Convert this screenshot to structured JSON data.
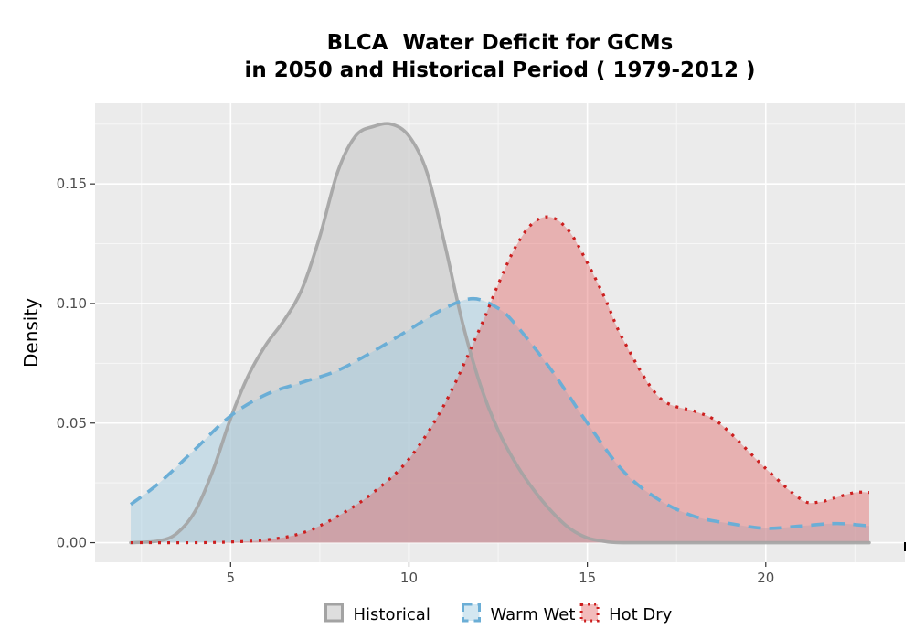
{
  "chart_data": {
    "type": "area",
    "title_lines": [
      "BLCA  Water Deficit for GCMs",
      "in 2050 and Historical Period ( 1979-2012 )"
    ],
    "xlabel": "",
    "ylabel": "Density",
    "xlim": [
      1.2,
      23.9
    ],
    "ylim": [
      -0.0082,
      0.1837
    ],
    "x_ticks": [
      5,
      10,
      15,
      20
    ],
    "x_tick_labels": [
      "5",
      "10",
      "15",
      "20"
    ],
    "y_ticks": [
      0.0,
      0.05,
      0.1,
      0.15
    ],
    "y_tick_labels": [
      "0.00",
      "0.05",
      "0.10",
      "0.15"
    ],
    "grid": true,
    "legend_position": "bottom",
    "series": [
      {
        "name": "Historical",
        "fill": "#c8c8c8",
        "line": "#a3a3a3",
        "line_style": "solid",
        "points": [
          [
            2.2,
            0.0
          ],
          [
            3.0,
            0.0008
          ],
          [
            3.5,
            0.004
          ],
          [
            4.0,
            0.013
          ],
          [
            4.5,
            0.03
          ],
          [
            5.0,
            0.052
          ],
          [
            5.5,
            0.07
          ],
          [
            6.0,
            0.083
          ],
          [
            6.5,
            0.093
          ],
          [
            7.0,
            0.106
          ],
          [
            7.5,
            0.128
          ],
          [
            8.0,
            0.155
          ],
          [
            8.5,
            0.17
          ],
          [
            9.0,
            0.174
          ],
          [
            9.5,
            0.175
          ],
          [
            10.0,
            0.17
          ],
          [
            10.5,
            0.155
          ],
          [
            11.0,
            0.125
          ],
          [
            11.5,
            0.092
          ],
          [
            12.0,
            0.066
          ],
          [
            12.5,
            0.047
          ],
          [
            13.0,
            0.033
          ],
          [
            13.5,
            0.022
          ],
          [
            14.0,
            0.013
          ],
          [
            14.5,
            0.006
          ],
          [
            15.0,
            0.002
          ],
          [
            15.5,
            0.0005
          ],
          [
            16.0,
            0.0
          ],
          [
            18.0,
            0.0
          ],
          [
            20.0,
            0.0
          ],
          [
            22.9,
            0.0
          ]
        ]
      },
      {
        "name": "Warm Wet",
        "fill": "#9ecae1",
        "line": "#6baed6",
        "line_style": "dashed",
        "points": [
          [
            2.2,
            0.016
          ],
          [
            3.0,
            0.025
          ],
          [
            4.0,
            0.039
          ],
          [
            5.0,
            0.053
          ],
          [
            6.0,
            0.062
          ],
          [
            7.0,
            0.067
          ],
          [
            8.0,
            0.072
          ],
          [
            9.0,
            0.08
          ],
          [
            10.0,
            0.089
          ],
          [
            11.0,
            0.098
          ],
          [
            11.8,
            0.102
          ],
          [
            12.5,
            0.098
          ],
          [
            13.0,
            0.091
          ],
          [
            14.0,
            0.072
          ],
          [
            15.0,
            0.05
          ],
          [
            16.0,
            0.03
          ],
          [
            17.0,
            0.018
          ],
          [
            18.0,
            0.011
          ],
          [
            19.0,
            0.008
          ],
          [
            20.0,
            0.006
          ],
          [
            21.0,
            0.007
          ],
          [
            22.0,
            0.008
          ],
          [
            22.9,
            0.007
          ]
        ]
      },
      {
        "name": "Hot Dry",
        "fill": "#e36b6b",
        "line": "#cc1f1f",
        "line_style": "dotted",
        "points": [
          [
            2.2,
            0.0
          ],
          [
            4.0,
            0.0
          ],
          [
            5.0,
            0.0003
          ],
          [
            6.0,
            0.0012
          ],
          [
            7.0,
            0.004
          ],
          [
            8.0,
            0.011
          ],
          [
            9.0,
            0.021
          ],
          [
            10.0,
            0.035
          ],
          [
            11.0,
            0.058
          ],
          [
            12.0,
            0.09
          ],
          [
            12.5,
            0.108
          ],
          [
            13.0,
            0.124
          ],
          [
            13.5,
            0.134
          ],
          [
            14.0,
            0.136
          ],
          [
            14.5,
            0.13
          ],
          [
            15.0,
            0.117
          ],
          [
            15.5,
            0.102
          ],
          [
            16.0,
            0.085
          ],
          [
            17.0,
            0.061
          ],
          [
            18.0,
            0.055
          ],
          [
            18.5,
            0.052
          ],
          [
            19.0,
            0.046
          ],
          [
            20.0,
            0.031
          ],
          [
            21.0,
            0.018
          ],
          [
            21.5,
            0.017
          ],
          [
            22.0,
            0.019
          ],
          [
            22.5,
            0.021
          ],
          [
            22.9,
            0.021
          ]
        ]
      }
    ]
  }
}
